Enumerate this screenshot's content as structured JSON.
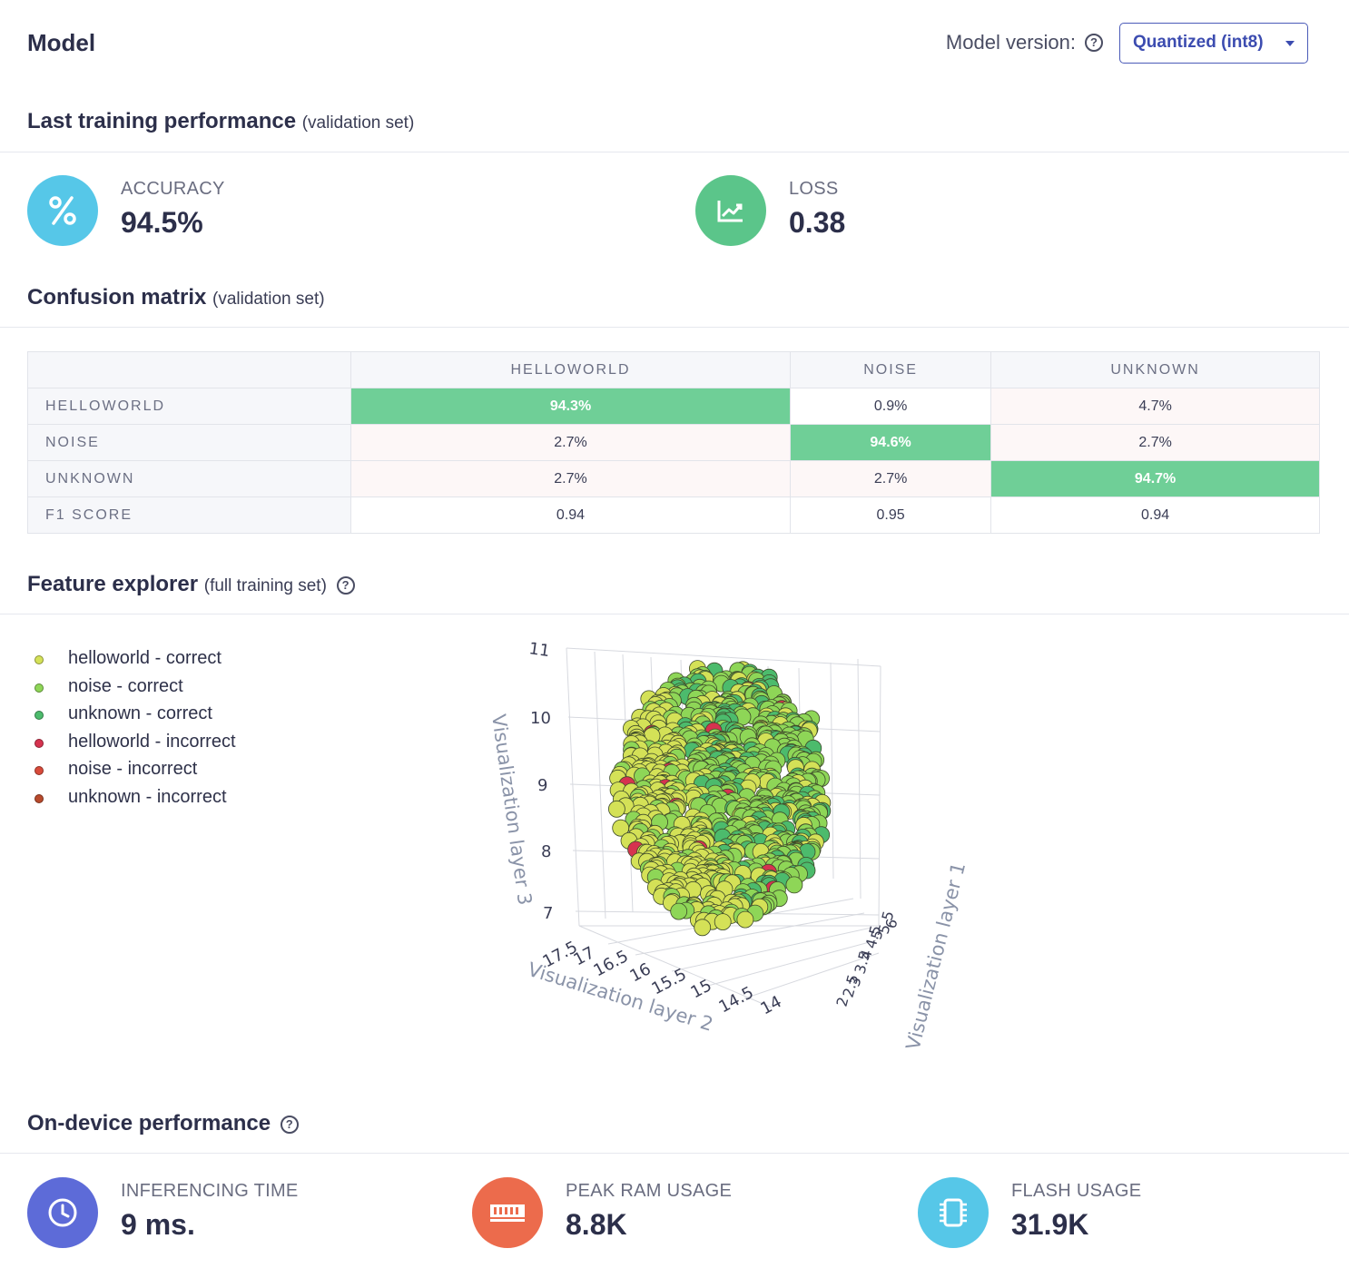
{
  "header": {
    "title": "Model",
    "version_label": "Model version:",
    "version_value": "Quantized (int8)"
  },
  "training": {
    "title": "Last training performance",
    "subtitle": "(validation set)",
    "accuracy_label": "ACCURACY",
    "accuracy_value": "94.5%",
    "loss_label": "LOSS",
    "loss_value": "0.38"
  },
  "confusion": {
    "title": "Confusion matrix",
    "subtitle": "(validation set)",
    "columns": [
      "HELLOWORLD",
      "NOISE",
      "UNKNOWN"
    ],
    "rows": [
      {
        "label": "HELLOWORLD",
        "cells": [
          "94.3%",
          "0.9%",
          "4.7%"
        ]
      },
      {
        "label": "NOISE",
        "cells": [
          "2.7%",
          "94.6%",
          "2.7%"
        ]
      },
      {
        "label": "UNKNOWN",
        "cells": [
          "2.7%",
          "2.7%",
          "94.7%"
        ]
      },
      {
        "label": "F1 SCORE",
        "cells": [
          "0.94",
          "0.95",
          "0.94"
        ]
      }
    ]
  },
  "features": {
    "title": "Feature explorer",
    "subtitle": "(full training set)",
    "legend": [
      {
        "label": "helloworld - correct",
        "color": "#d4e157"
      },
      {
        "label": "noise - correct",
        "color": "#8ed657"
      },
      {
        "label": "unknown - correct",
        "color": "#4cbb6c"
      },
      {
        "label": "helloworld - incorrect",
        "color": "#d6334f"
      },
      {
        "label": "noise - incorrect",
        "color": "#d84a3a"
      },
      {
        "label": "unknown - incorrect",
        "color": "#b84a2c"
      }
    ],
    "z_axis_label": "Visualization layer 3",
    "x_axis_label": "Visualization layer 2",
    "y_axis_label": "Visualization layer 1",
    "z_ticks": [
      "11",
      "10",
      "9",
      "8",
      "7"
    ],
    "x_ticks": [
      "17.5",
      "17",
      "16.5",
      "16",
      "15.5",
      "15",
      "14.5",
      "14"
    ],
    "y_ticks": [
      "2",
      "2.5",
      "3",
      "3.5",
      "4",
      "4.5",
      "5",
      "5.5",
      "6"
    ]
  },
  "device": {
    "title": "On-device performance",
    "inference_label": "INFERENCING TIME",
    "inference_value": "9 ms.",
    "ram_label": "PEAK RAM USAGE",
    "ram_value": "8.8K",
    "flash_label": "FLASH USAGE",
    "flash_value": "31.9K"
  },
  "colors": {
    "accuracy_icon": "#56c7e8",
    "loss_icon": "#5bc58a",
    "inference_icon": "#5d6bd8",
    "ram_icon": "#ec6b4c",
    "flash_icon": "#56c7e8",
    "diagonal_cell": "#6fcf97",
    "accent": "#3c4cb0"
  }
}
